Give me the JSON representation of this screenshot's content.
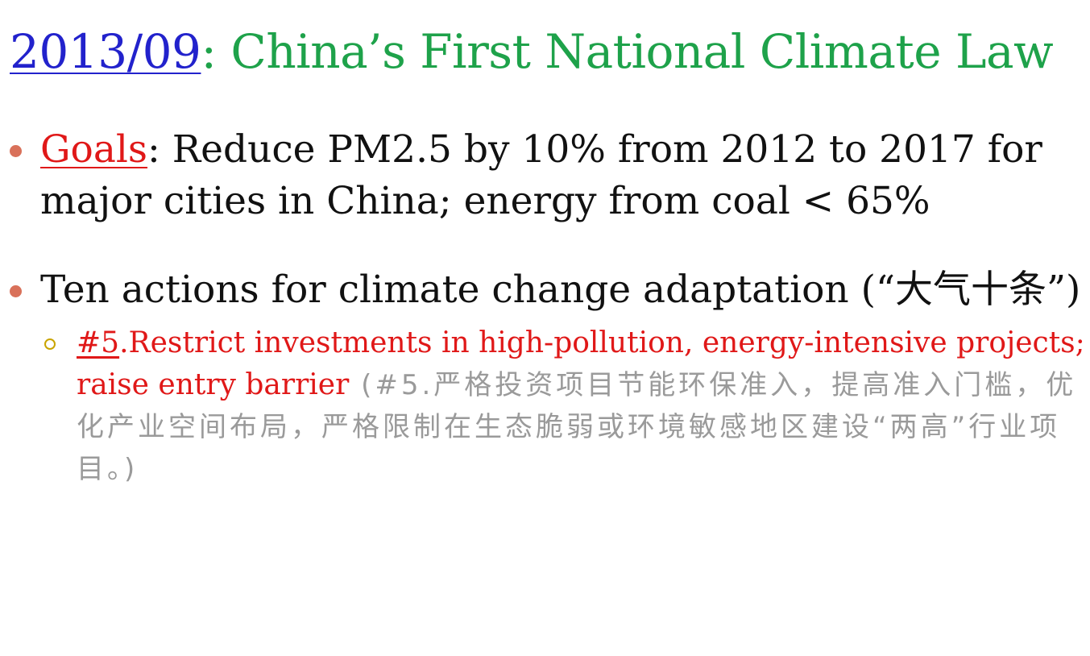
{
  "slide": {
    "title": {
      "date_link": "2013/09",
      "separator": ":",
      "text": " China’s First National Climate Law"
    },
    "bullets": [
      {
        "label_link": "Goals",
        "text": ": Reduce PM2.5 by 10% from 2012 to 2017 for major cities in China; energy from coal < 65%"
      },
      {
        "text": "Ten actions for climate change adaptation (“大气十条”)",
        "subitems": [
          {
            "number_link": "#5",
            "english": ".Restrict investments in high-pollution, energy-intensive projects; raise entry barrier",
            "chinese": " (#5.严格投资项目节能环保准入，提高准入门槛，优化产业空间布局，严格限制在生态脆弱或环境敏感地区建设“两高”行业项目。)"
          }
        ]
      }
    ]
  },
  "colors": {
    "date_link": "#2222cc",
    "title": "#1ea24a",
    "highlight_red": "#e01818",
    "bullet_dot": "#d9715a",
    "sub_marker": "#c9a400",
    "chinese_text": "#9a9a9a",
    "body_text": "#111111"
  }
}
